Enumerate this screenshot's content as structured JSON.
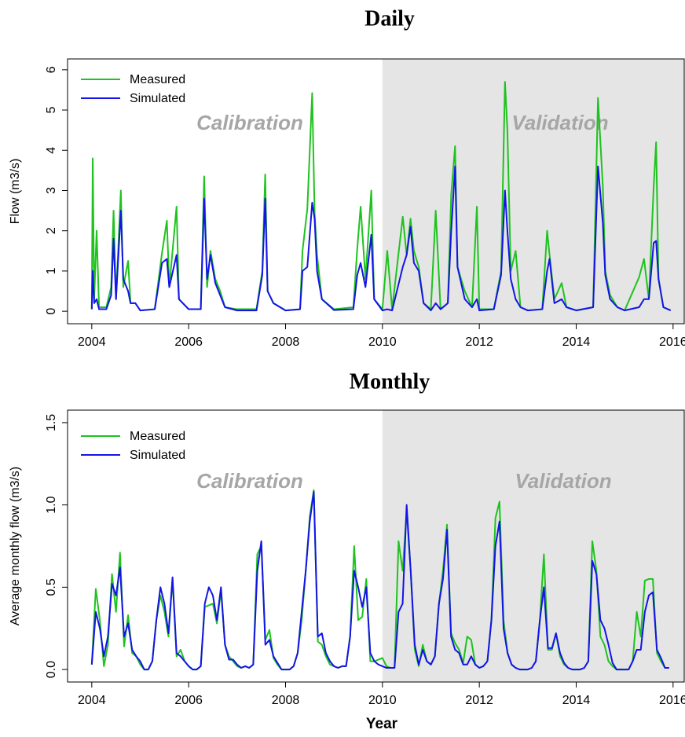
{
  "chart_data": [
    {
      "type": "line",
      "title": "Daily",
      "ylabel": "Flow (m3/s)",
      "annotations": [
        "Calibration",
        "Validation"
      ],
      "shade_from": 2010,
      "shade_color": "#e5e5e5",
      "legend": "top-left",
      "xlim": [
        2003.5,
        2016.23
      ],
      "ylim": [
        -0.31,
        6.27
      ],
      "xticks": [
        2004,
        2006,
        2008,
        2010,
        2012,
        2014,
        2016
      ],
      "yticks": [
        0,
        1,
        2,
        3,
        4,
        5,
        6
      ],
      "x": [
        2004.0,
        2004.02,
        2004.05,
        2004.1,
        2004.15,
        2004.3,
        2004.4,
        2004.45,
        2004.5,
        2004.6,
        2004.65,
        2004.75,
        2004.8,
        2004.9,
        2005.0,
        2005.3,
        2005.45,
        2005.55,
        2005.6,
        2005.75,
        2005.8,
        2006.0,
        2006.25,
        2006.32,
        2006.38,
        2006.45,
        2006.55,
        2006.65,
        2006.75,
        2007.0,
        2007.4,
        2007.52,
        2007.58,
        2007.63,
        2007.75,
        2008.0,
        2008.3,
        2008.35,
        2008.45,
        2008.55,
        2008.6,
        2008.65,
        2008.75,
        2009.0,
        2009.4,
        2009.48,
        2009.55,
        2009.65,
        2009.77,
        2009.83,
        2010.0,
        2010.1,
        2010.2,
        2010.42,
        2010.5,
        2010.58,
        2010.65,
        2010.75,
        2010.85,
        2011.0,
        2011.1,
        2011.2,
        2011.35,
        2011.42,
        2011.5,
        2011.55,
        2011.7,
        2011.85,
        2011.95,
        2012.0,
        2012.3,
        2012.45,
        2012.53,
        2012.58,
        2012.65,
        2012.75,
        2012.85,
        2013.0,
        2013.3,
        2013.4,
        2013.45,
        2013.55,
        2013.7,
        2013.8,
        2014.0,
        2014.35,
        2014.45,
        2014.55,
        2014.6,
        2014.7,
        2014.85,
        2015.0,
        2015.3,
        2015.4,
        2015.5,
        2015.6,
        2015.65,
        2015.7,
        2015.8,
        2015.95
      ],
      "series": [
        {
          "name": "Measured",
          "color": "#1ec31e",
          "values": [
            0.05,
            3.8,
            0.3,
            2.0,
            0.1,
            0.1,
            0.6,
            2.5,
            0.3,
            3.0,
            0.6,
            1.25,
            0.2,
            0.2,
            0.02,
            0.05,
            1.45,
            2.25,
            0.6,
            2.6,
            0.3,
            0.05,
            0.05,
            3.35,
            0.6,
            1.5,
            0.8,
            0.5,
            0.1,
            0.05,
            0.05,
            1.0,
            3.4,
            0.5,
            0.2,
            0.02,
            0.05,
            1.5,
            2.55,
            5.42,
            2.45,
            1.4,
            0.3,
            0.05,
            0.1,
            1.55,
            2.6,
            0.8,
            3.0,
            0.3,
            0.05,
            1.5,
            0.05,
            2.35,
            1.4,
            2.3,
            1.5,
            1.1,
            0.2,
            0.05,
            2.5,
            0.05,
            0.2,
            2.9,
            4.1,
            1.1,
            0.5,
            0.1,
            2.6,
            0.05,
            0.05,
            1.0,
            5.7,
            4.5,
            1.0,
            1.5,
            0.1,
            0.02,
            0.05,
            2.0,
            1.4,
            0.3,
            0.7,
            0.1,
            0.02,
            0.1,
            5.3,
            3.1,
            1.0,
            0.4,
            0.1,
            0.02,
            0.85,
            1.3,
            0.3,
            3.1,
            4.2,
            0.8,
            0.1,
            0.02
          ]
        },
        {
          "name": "Simulated",
          "color": "#1414e6",
          "values": [
            0.05,
            1.0,
            0.2,
            0.3,
            0.05,
            0.05,
            0.4,
            1.8,
            0.3,
            2.5,
            0.8,
            0.5,
            0.2,
            0.2,
            0.02,
            0.05,
            1.2,
            1.3,
            0.6,
            1.4,
            0.3,
            0.05,
            0.05,
            2.8,
            0.8,
            1.4,
            0.7,
            0.4,
            0.1,
            0.02,
            0.02,
            0.9,
            2.8,
            0.5,
            0.2,
            0.02,
            0.05,
            1.0,
            1.1,
            2.7,
            2.3,
            1.0,
            0.3,
            0.03,
            0.05,
            0.9,
            1.2,
            0.6,
            1.9,
            0.3,
            0.02,
            0.05,
            0.02,
            1.1,
            1.4,
            2.1,
            1.2,
            1.0,
            0.2,
            0.02,
            0.2,
            0.05,
            0.2,
            2.0,
            3.6,
            1.1,
            0.3,
            0.1,
            0.3,
            0.02,
            0.05,
            0.9,
            3.0,
            2.0,
            0.8,
            0.3,
            0.1,
            0.02,
            0.05,
            1.0,
            1.3,
            0.2,
            0.3,
            0.1,
            0.02,
            0.1,
            3.6,
            2.2,
            0.9,
            0.3,
            0.1,
            0.02,
            0.1,
            0.3,
            0.3,
            1.7,
            1.75,
            0.8,
            0.1,
            0.02
          ]
        }
      ]
    },
    {
      "type": "line",
      "title": "Monthly",
      "ylabel": "Average monthly flow (m3/s)",
      "xlabel": "Year",
      "annotations": [
        "Calibration",
        "Validation"
      ],
      "shade_from": 2010,
      "shade_color": "#e5e5e5",
      "legend": "top-left",
      "xlim": [
        2003.5,
        2016.23
      ],
      "ylim": [
        -0.076,
        1.576
      ],
      "xticks": [
        2004,
        2006,
        2008,
        2010,
        2012,
        2014,
        2016
      ],
      "yticks": [
        {
          "value": 0,
          "label": "0.0"
        },
        0.5,
        {
          "value": 1,
          "label": "1.0"
        },
        1.5
      ],
      "x": [
        2004.0,
        2004.083,
        2004.167,
        2004.25,
        2004.333,
        2004.417,
        2004.5,
        2004.583,
        2004.667,
        2004.75,
        2004.833,
        2004.917,
        2005.0,
        2005.083,
        2005.167,
        2005.25,
        2005.333,
        2005.417,
        2005.5,
        2005.583,
        2005.667,
        2005.75,
        2005.833,
        2005.917,
        2006.0,
        2006.083,
        2006.167,
        2006.25,
        2006.333,
        2006.417,
        2006.5,
        2006.583,
        2006.667,
        2006.75,
        2006.833,
        2006.917,
        2007.0,
        2007.083,
        2007.167,
        2007.25,
        2007.333,
        2007.417,
        2007.5,
        2007.583,
        2007.667,
        2007.75,
        2007.833,
        2007.917,
        2008.0,
        2008.083,
        2008.167,
        2008.25,
        2008.333,
        2008.417,
        2008.5,
        2008.583,
        2008.667,
        2008.75,
        2008.833,
        2008.917,
        2009.0,
        2009.083,
        2009.167,
        2009.25,
        2009.333,
        2009.417,
        2009.5,
        2009.583,
        2009.667,
        2009.75,
        2009.833,
        2009.917,
        2010.0,
        2010.083,
        2010.167,
        2010.25,
        2010.333,
        2010.417,
        2010.5,
        2010.583,
        2010.667,
        2010.75,
        2010.833,
        2010.917,
        2011.0,
        2011.083,
        2011.167,
        2011.25,
        2011.333,
        2011.417,
        2011.5,
        2011.583,
        2011.667,
        2011.75,
        2011.833,
        2011.917,
        2012.0,
        2012.083,
        2012.167,
        2012.25,
        2012.333,
        2012.417,
        2012.5,
        2012.583,
        2012.667,
        2012.75,
        2012.833,
        2012.917,
        2013.0,
        2013.083,
        2013.167,
        2013.25,
        2013.333,
        2013.417,
        2013.5,
        2013.583,
        2013.667,
        2013.75,
        2013.833,
        2013.917,
        2014.0,
        2014.083,
        2014.167,
        2014.25,
        2014.333,
        2014.417,
        2014.5,
        2014.583,
        2014.667,
        2014.75,
        2014.833,
        2014.917,
        2015.0,
        2015.083,
        2015.167,
        2015.25,
        2015.333,
        2015.417,
        2015.5,
        2015.583,
        2015.667,
        2015.75,
        2015.833,
        2015.917
      ],
      "series": [
        {
          "name": "Measured",
          "color": "#1ec31e",
          "values": [
            0.03,
            0.49,
            0.3,
            0.02,
            0.15,
            0.58,
            0.35,
            0.71,
            0.14,
            0.33,
            0.1,
            0.08,
            0.03,
            0.0,
            0.0,
            0.05,
            0.3,
            0.45,
            0.35,
            0.2,
            0.55,
            0.08,
            0.12,
            0.05,
            0.02,
            0.0,
            0.0,
            0.02,
            0.38,
            0.39,
            0.4,
            0.28,
            0.48,
            0.15,
            0.08,
            0.05,
            0.02,
            0.01,
            0.02,
            0.01,
            0.03,
            0.7,
            0.75,
            0.18,
            0.24,
            0.07,
            0.03,
            0.0,
            0.0,
            0.0,
            0.02,
            0.1,
            0.3,
            0.6,
            0.93,
            1.09,
            0.17,
            0.15,
            0.08,
            0.03,
            0.02,
            0.01,
            0.02,
            0.02,
            0.2,
            0.75,
            0.3,
            0.32,
            0.55,
            0.05,
            0.05,
            0.06,
            0.07,
            0.02,
            0.01,
            0.01,
            0.78,
            0.6,
            0.96,
            0.6,
            0.12,
            0.02,
            0.15,
            0.05,
            0.03,
            0.08,
            0.4,
            0.6,
            0.88,
            0.22,
            0.16,
            0.12,
            0.04,
            0.2,
            0.18,
            0.03,
            0.01,
            0.02,
            0.05,
            0.3,
            0.92,
            1.02,
            0.3,
            0.1,
            0.03,
            0.01,
            0.0,
            0.0,
            0.0,
            0.01,
            0.05,
            0.3,
            0.7,
            0.12,
            0.12,
            0.22,
            0.08,
            0.03,
            0.01,
            0.0,
            0.0,
            0.0,
            0.01,
            0.05,
            0.78,
            0.6,
            0.2,
            0.15,
            0.05,
            0.02,
            0.0,
            0.0,
            0.0,
            0.0,
            0.05,
            0.35,
            0.2,
            0.54,
            0.55,
            0.55,
            0.1,
            0.05,
            0.01,
            0.01
          ]
        },
        {
          "name": "Simulated",
          "color": "#1414e6",
          "values": [
            0.03,
            0.35,
            0.25,
            0.08,
            0.2,
            0.52,
            0.45,
            0.62,
            0.2,
            0.28,
            0.12,
            0.08,
            0.05,
            0.0,
            0.0,
            0.05,
            0.3,
            0.5,
            0.4,
            0.22,
            0.56,
            0.1,
            0.08,
            0.05,
            0.02,
            0.0,
            0.0,
            0.02,
            0.4,
            0.5,
            0.45,
            0.3,
            0.5,
            0.15,
            0.06,
            0.06,
            0.03,
            0.01,
            0.02,
            0.01,
            0.03,
            0.6,
            0.78,
            0.15,
            0.18,
            0.08,
            0.04,
            0.0,
            0.0,
            0.0,
            0.02,
            0.1,
            0.35,
            0.6,
            0.9,
            1.08,
            0.2,
            0.22,
            0.1,
            0.05,
            0.02,
            0.01,
            0.02,
            0.02,
            0.2,
            0.6,
            0.5,
            0.38,
            0.5,
            0.1,
            0.05,
            0.03,
            0.02,
            0.01,
            0.01,
            0.01,
            0.35,
            0.4,
            1.0,
            0.6,
            0.15,
            0.03,
            0.12,
            0.05,
            0.03,
            0.08,
            0.4,
            0.55,
            0.85,
            0.2,
            0.12,
            0.1,
            0.03,
            0.03,
            0.08,
            0.03,
            0.01,
            0.02,
            0.05,
            0.3,
            0.75,
            0.9,
            0.25,
            0.1,
            0.03,
            0.01,
            0.0,
            0.0,
            0.0,
            0.01,
            0.05,
            0.3,
            0.5,
            0.13,
            0.13,
            0.22,
            0.1,
            0.04,
            0.01,
            0.0,
            0.0,
            0.0,
            0.01,
            0.05,
            0.66,
            0.58,
            0.3,
            0.25,
            0.15,
            0.04,
            0.0,
            0.0,
            0.0,
            0.0,
            0.05,
            0.12,
            0.12,
            0.35,
            0.45,
            0.47,
            0.12,
            0.07,
            0.01,
            0.01
          ]
        }
      ]
    }
  ]
}
